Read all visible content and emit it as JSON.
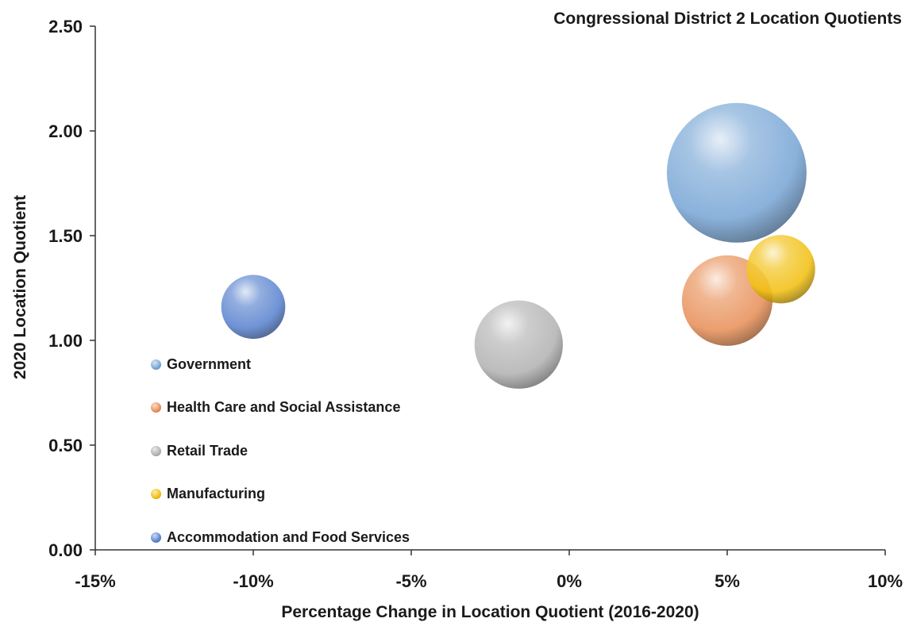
{
  "chart_data": {
    "type": "bubble",
    "title": "Congressional District 2 Location Quotients",
    "xlabel": "Percentage Change in Location Quotient (2016-2020)",
    "ylabel": "2020 Location Quotient",
    "xlim": [
      -0.15,
      0.1
    ],
    "ylim": [
      0,
      2.5
    ],
    "x_ticks": [
      -0.15,
      -0.1,
      -0.05,
      0,
      0.05,
      0.1
    ],
    "x_tick_labels": [
      "-15%",
      "-10%",
      "-5%",
      "0%",
      "5%",
      "10%"
    ],
    "y_ticks": [
      0,
      0.5,
      1.0,
      1.5,
      2.0,
      2.5
    ],
    "y_tick_labels": [
      "0.00",
      "0.50",
      "1.00",
      "1.50",
      "2.00",
      "2.50"
    ],
    "grid": false,
    "legend_position": "left",
    "series": [
      {
        "name": "Government",
        "x": 0.053,
        "y": 1.8,
        "size": 1.0,
        "color": "#7aa7d6"
      },
      {
        "name": "Health Care and Social Assistance",
        "x": 0.05,
        "y": 1.19,
        "size": 0.42,
        "color": "#e8915a"
      },
      {
        "name": "Retail Trade",
        "x": -0.016,
        "y": 0.98,
        "size": 0.4,
        "color": "#b3b3b3"
      },
      {
        "name": "Manufacturing",
        "x": 0.067,
        "y": 1.34,
        "size": 0.24,
        "color": "#f2c012"
      },
      {
        "name": "Accommodation and Food Services",
        "x": -0.1,
        "y": 1.16,
        "size": 0.21,
        "color": "#5b84cf"
      }
    ]
  }
}
